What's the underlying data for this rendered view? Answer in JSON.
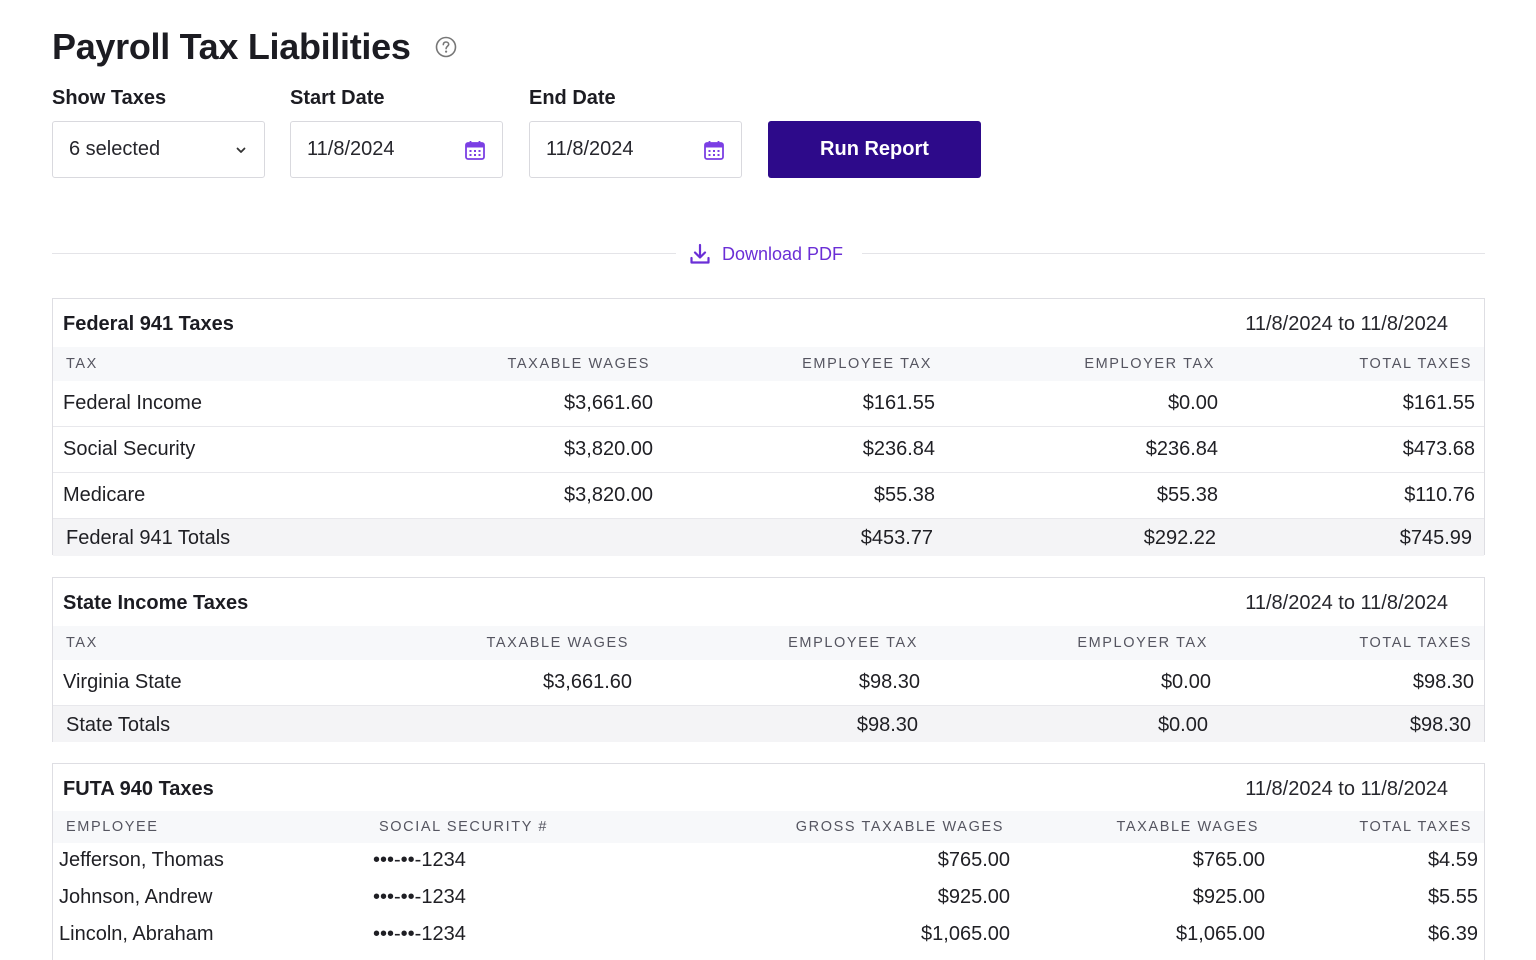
{
  "header": {
    "title": "Payroll Tax Liabilities",
    "help_icon": "question-circle-icon"
  },
  "filters": {
    "show_taxes_label": "Show Taxes",
    "show_taxes_value": "6 selected",
    "start_date_label": "Start Date",
    "start_date_value": "11/8/2024",
    "end_date_label": "End Date",
    "end_date_value": "11/8/2024",
    "run_report_label": "Run Report"
  },
  "download": {
    "label": "Download PDF",
    "icon": "download-icon"
  },
  "colors": {
    "accent": "#2d0a8a",
    "link": "#6b2fd6"
  },
  "federal": {
    "title": "Federal 941 Taxes",
    "range": "11/8/2024 to 11/8/2024",
    "columns": [
      "TAX",
      "TAXABLE WAGES",
      "EMPLOYEE TAX",
      "EMPLOYER TAX",
      "TOTAL TAXES"
    ],
    "rows": [
      [
        "Federal Income",
        "$3,661.60",
        "$161.55",
        "$0.00",
        "$161.55"
      ],
      [
        "Social Security",
        "$3,820.00",
        "$236.84",
        "$236.84",
        "$473.68"
      ],
      [
        "Medicare",
        "$3,820.00",
        "$55.38",
        "$55.38",
        "$110.76"
      ]
    ],
    "totals": [
      "Federal 941 Totals",
      "",
      "$453.77",
      "$292.22",
      "$745.99"
    ]
  },
  "state": {
    "title": "State Income Taxes",
    "range": "11/8/2024 to 11/8/2024",
    "columns": [
      "TAX",
      "TAXABLE WAGES",
      "EMPLOYEE TAX",
      "EMPLOYER TAX",
      "TOTAL TAXES"
    ],
    "rows": [
      [
        "Virginia State",
        "$3,661.60",
        "$98.30",
        "$0.00",
        "$98.30"
      ]
    ],
    "totals": [
      "State Totals",
      "",
      "$98.30",
      "$0.00",
      "$98.30"
    ]
  },
  "futa": {
    "title": "FUTA 940 Taxes",
    "range": "11/8/2024 to 11/8/2024",
    "columns": [
      "EMPLOYEE",
      "SOCIAL SECURITY #",
      "GROSS TAXABLE WAGES",
      "TAXABLE WAGES",
      "TOTAL TAXES"
    ],
    "rows": [
      [
        "Jefferson, Thomas",
        "•••-••-1234",
        "$765.00",
        "$765.00",
        "$4.59"
      ],
      [
        "Johnson, Andrew",
        "•••-••-1234",
        "$925.00",
        "$925.00",
        "$5.55"
      ],
      [
        "Lincoln, Abraham",
        "•••-••-1234",
        "$1,065.00",
        "$1,065.00",
        "$6.39"
      ]
    ]
  }
}
